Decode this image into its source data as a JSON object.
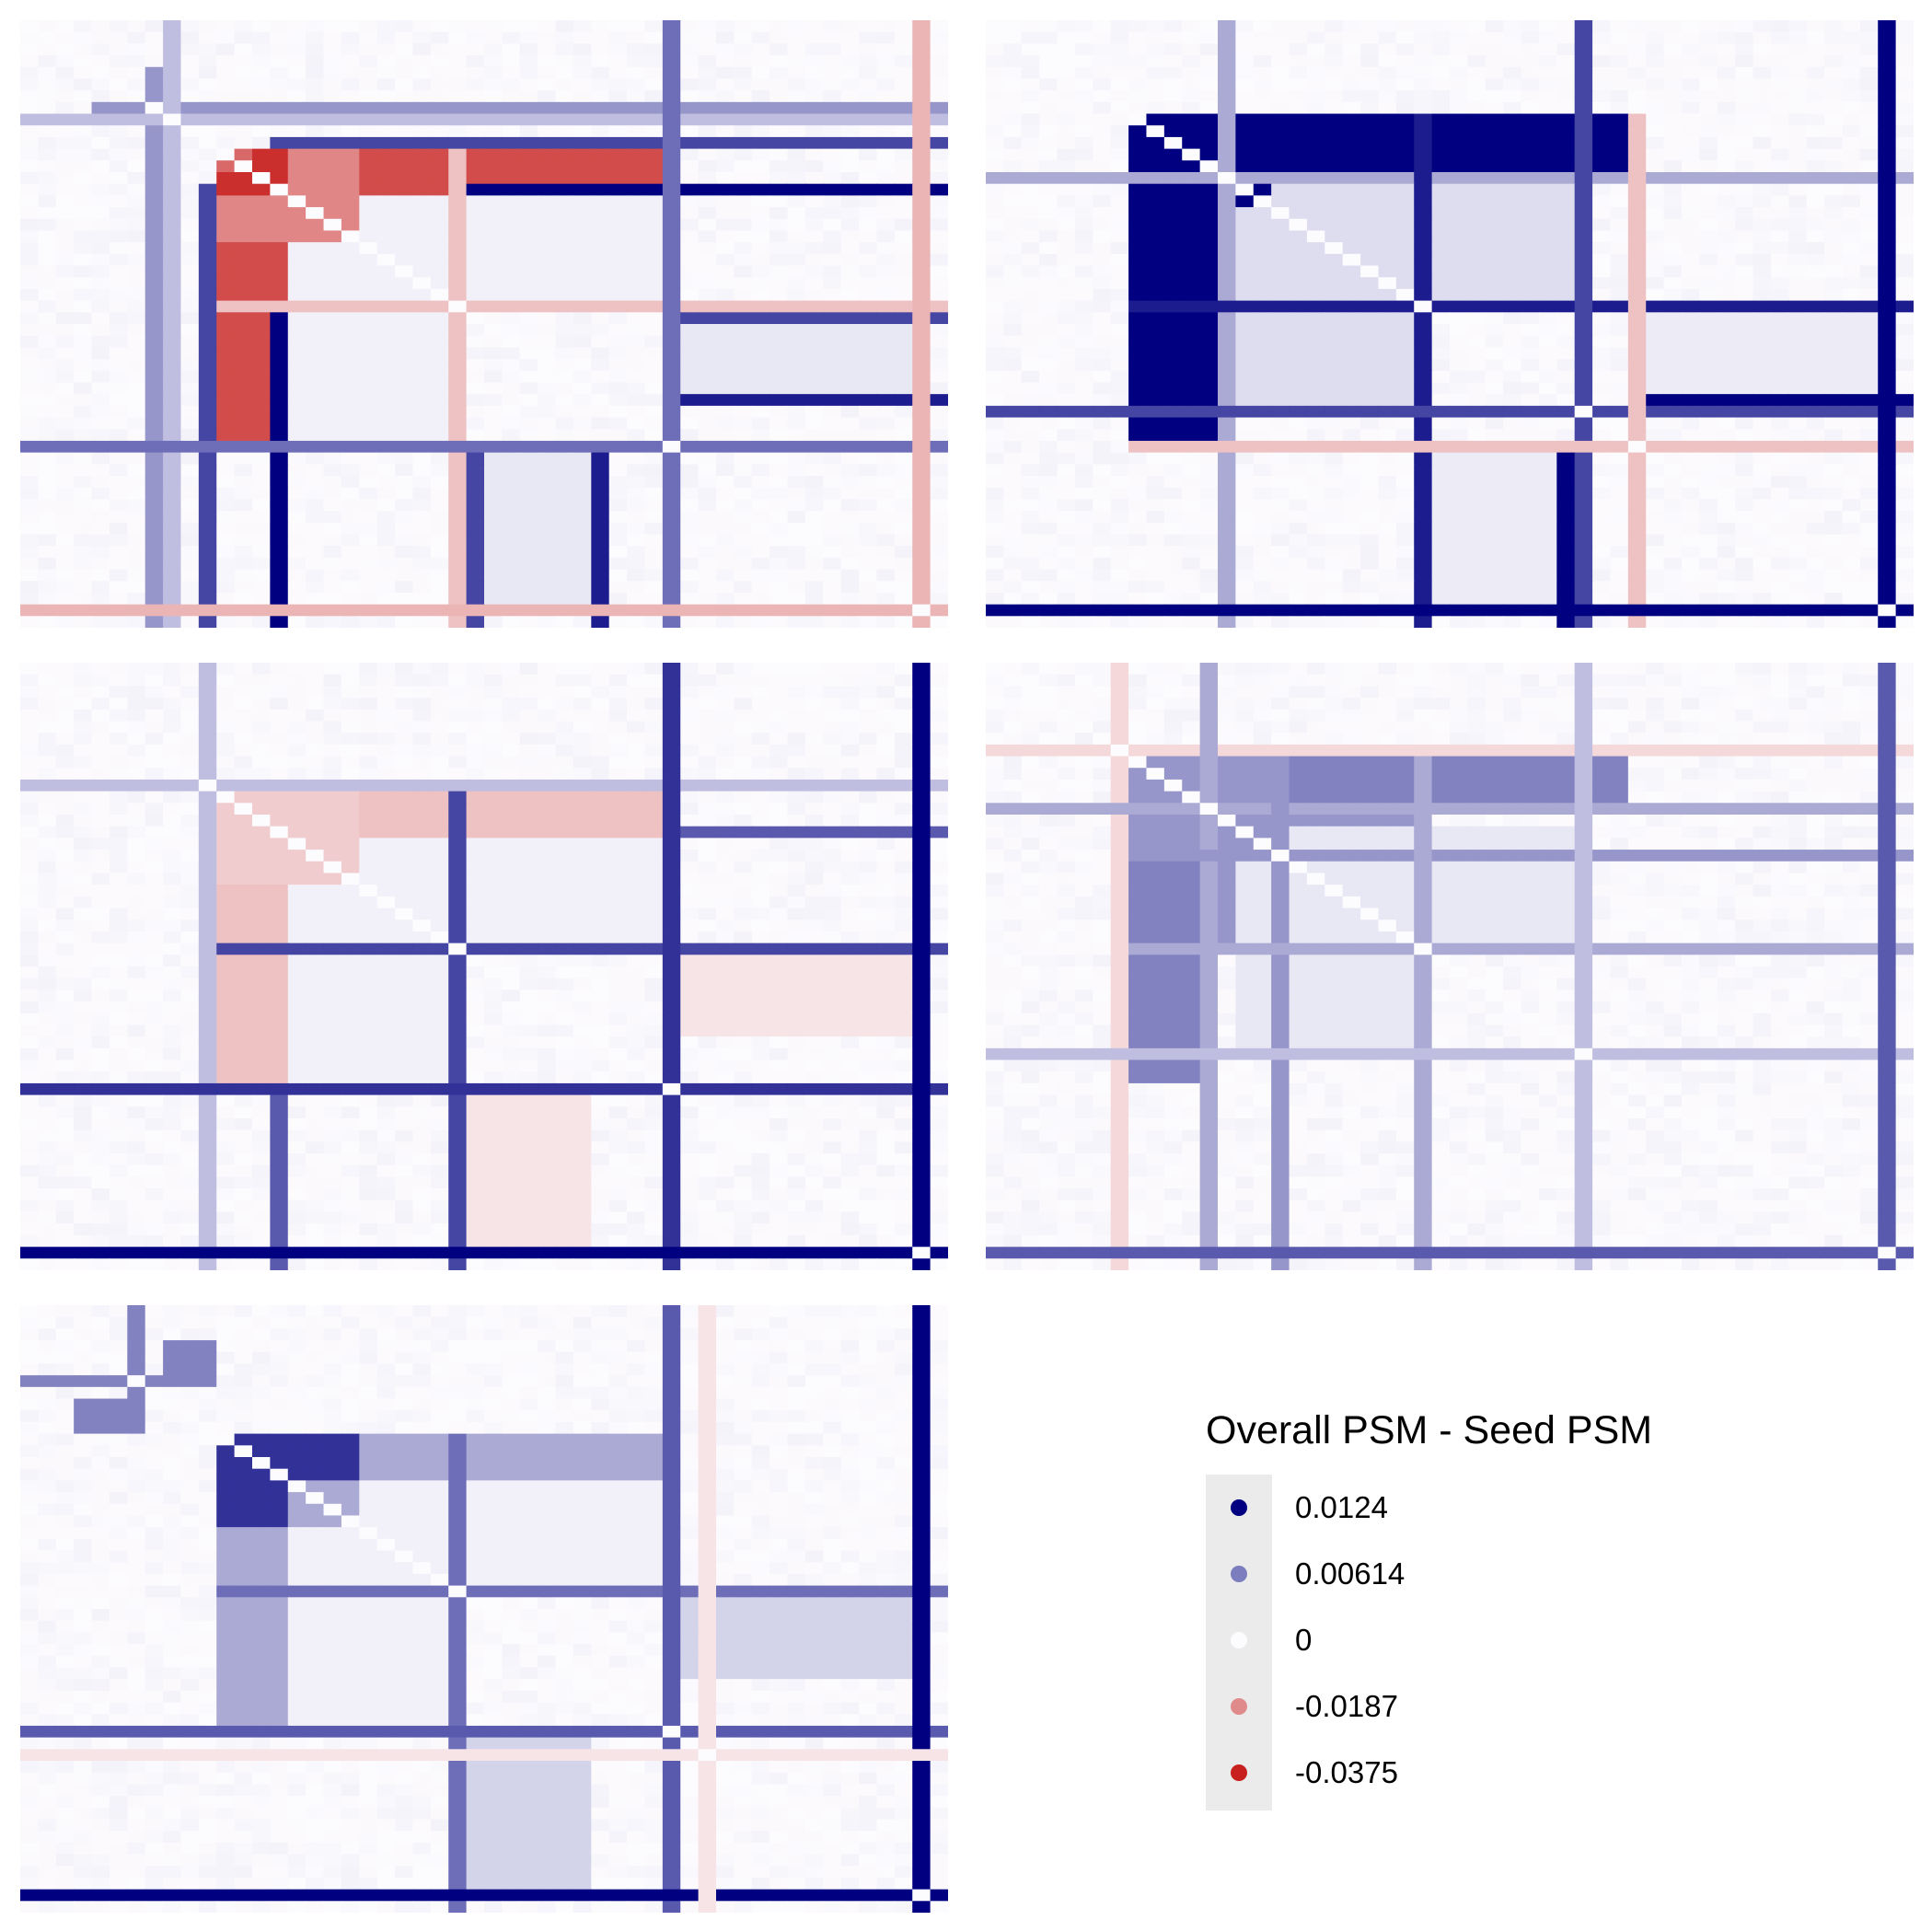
{
  "chart_data": {
    "type": "heatmap",
    "description_note": "",
    "n": 52,
    "legend": {
      "title": "Overall PSM - Seed PSM",
      "breaks": [
        0.0124,
        0.00614,
        0,
        -0.0187,
        -0.0375
      ],
      "labels": [
        "0.0124",
        "0.00614",
        "0",
        "-0.0187",
        "-0.0375"
      ],
      "colors": [
        "#000080",
        "#7b7dbf",
        "#fcfbfe",
        "#e08b8b",
        "#c8201e"
      ]
    },
    "low_color": "#c8201e",
    "mid_color": "#fcfbfe",
    "high_color": "#000080",
    "panels": [
      {
        "name": "panel-1",
        "blocks": [
          {
            "rows": [
              11,
              24
            ],
            "cols": [
              11,
              36
            ],
            "value": -0.025
          },
          {
            "rows": [
              11,
              24
            ],
            "cols": [
              13,
              14
            ],
            "value": -0.035
          },
          {
            "rows": [
              11,
              24
            ],
            "cols": [
              15,
              18
            ],
            "value": -0.02
          },
          {
            "rows": [
              11,
              14
            ],
            "cols": [
              19,
              36
            ],
            "value": -0.03
          },
          {
            "rows": [
              15,
              24
            ],
            "cols": [
              19,
              36
            ],
            "value": 0.0005
          },
          {
            "rows": [
              25,
              31
            ],
            "cols": [
              37,
              50
            ],
            "value": 0.001
          }
        ],
        "lines": [
          {
            "index": 7,
            "value": 0.005,
            "from": 4,
            "to": 51
          },
          {
            "index": 8,
            "value": 0.003,
            "from": 0,
            "to": 51
          },
          {
            "index": 10,
            "value": 0.009,
            "from": 14,
            "to": 51
          },
          {
            "index": 14,
            "value": 0.0124,
            "from": 25,
            "to": 51
          },
          {
            "index": 24,
            "value": -0.01,
            "from": 11,
            "to": 51
          },
          {
            "index": 25,
            "value": 0.009,
            "from": 37,
            "to": 51
          },
          {
            "index": 32,
            "value": 0.011,
            "from": 37,
            "to": 51
          },
          {
            "index": 36,
            "value": 0.007,
            "from": 0,
            "to": 51
          },
          {
            "index": 50,
            "value": -0.012,
            "from": 0,
            "to": 51
          }
        ]
      },
      {
        "name": "panel-2",
        "blocks": [
          {
            "rows": [
              8,
              24
            ],
            "cols": [
              8,
              24
            ],
            "value": 0.0124
          },
          {
            "rows": [
              8,
              12
            ],
            "cols": [
              16,
              35
            ],
            "value": 0.0124
          },
          {
            "rows": [
              14,
              24
            ],
            "cols": [
              16,
              33
            ],
            "value": 0.0015
          },
          {
            "rows": [
              24,
              32
            ],
            "cols": [
              37,
              50
            ],
            "value": 0.0008
          }
        ],
        "lines": [
          {
            "index": 13,
            "value": 0.004,
            "from": 0,
            "to": 51
          },
          {
            "index": 24,
            "value": 0.011,
            "from": 8,
            "to": 51
          },
          {
            "index": 32,
            "value": 0.0124,
            "from": 36,
            "to": 51
          },
          {
            "index": 33,
            "value": 0.009,
            "from": 0,
            "to": 51
          },
          {
            "index": 36,
            "value": -0.01,
            "from": 8,
            "to": 51
          },
          {
            "index": 50,
            "value": 0.0124,
            "from": 0,
            "to": 51
          }
        ]
      },
      {
        "name": "panel-3",
        "blocks": [
          {
            "rows": [
              11,
              24
            ],
            "cols": [
              11,
              36
            ],
            "value": -0.008
          },
          {
            "rows": [
              11,
              14
            ],
            "cols": [
              19,
              36
            ],
            "value": -0.01
          },
          {
            "rows": [
              15,
              24
            ],
            "cols": [
              19,
              36
            ],
            "value": 0.0005
          },
          {
            "rows": [
              25,
              31
            ],
            "cols": [
              37,
              50
            ],
            "value": -0.004
          }
        ],
        "lines": [
          {
            "index": 10,
            "value": 0.003,
            "from": 0,
            "to": 51
          },
          {
            "index": 14,
            "value": 0.008,
            "from": 37,
            "to": 51
          },
          {
            "index": 24,
            "value": 0.009,
            "from": 11,
            "to": 51
          },
          {
            "index": 36,
            "value": 0.01,
            "from": 0,
            "to": 51
          },
          {
            "index": 50,
            "value": 0.0124,
            "from": 0,
            "to": 51
          }
        ]
      },
      {
        "name": "panel-4",
        "blocks": [
          {
            "rows": [
              8,
              24
            ],
            "cols": [
              8,
              24
            ],
            "value": 0.005
          },
          {
            "rows": [
              8,
              12
            ],
            "cols": [
              16,
              35
            ],
            "value": 0.006
          },
          {
            "rows": [
              14,
              24
            ],
            "cols": [
              16,
              33
            ],
            "value": 0.001
          }
        ],
        "lines": [
          {
            "index": 7,
            "value": -0.006,
            "from": 0,
            "to": 51
          },
          {
            "index": 12,
            "value": 0.004,
            "from": 0,
            "to": 51
          },
          {
            "index": 16,
            "value": 0.005,
            "from": 8,
            "to": 51
          },
          {
            "index": 24,
            "value": 0.004,
            "from": 8,
            "to": 51
          },
          {
            "index": 33,
            "value": 0.003,
            "from": 0,
            "to": 51
          },
          {
            "index": 50,
            "value": 0.008,
            "from": 0,
            "to": 51
          }
        ]
      },
      {
        "name": "panel-5",
        "blocks": [
          {
            "rows": [
              3,
              5
            ],
            "cols": [
              8,
              10
            ],
            "value": 0.006
          },
          {
            "rows": [
              11,
              24
            ],
            "cols": [
              11,
              36
            ],
            "value": 0.004
          },
          {
            "rows": [
              11,
              14
            ],
            "cols": [
              11,
              18
            ],
            "value": 0.01
          },
          {
            "rows": [
              15,
              24
            ],
            "cols": [
              19,
              36
            ],
            "value": 0.0005
          },
          {
            "rows": [
              25,
              31
            ],
            "cols": [
              37,
              50
            ],
            "value": 0.002
          }
        ],
        "lines": [
          {
            "index": 6,
            "value": 0.006,
            "from": 0,
            "to": 10
          },
          {
            "index": 24,
            "value": 0.007,
            "from": 11,
            "to": 51
          },
          {
            "index": 36,
            "value": 0.008,
            "from": 0,
            "to": 51
          },
          {
            "index": 50,
            "value": 0.0124,
            "from": 0,
            "to": 51
          },
          {
            "index": 38,
            "value": -0.004,
            "from": 0,
            "to": 51
          }
        ]
      }
    ]
  }
}
